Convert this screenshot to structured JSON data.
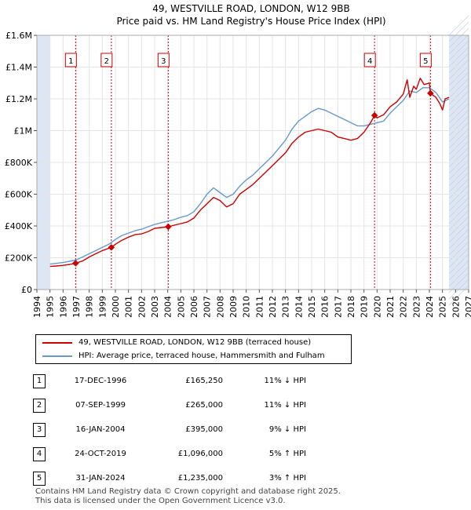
{
  "chart_data": {
    "type": "line",
    "title": "49, WESTVILLE ROAD, LONDON, W12 9BB",
    "subtitle": "Price paid vs. HM Land Registry's House Price Index (HPI)",
    "xlim": [
      1994,
      2027
    ],
    "ylim": [
      0,
      1600000
    ],
    "x_ticks": [
      "1994",
      "1995",
      "1996",
      "1997",
      "1998",
      "1999",
      "2000",
      "2001",
      "2002",
      "2003",
      "2004",
      "2005",
      "2006",
      "2007",
      "2008",
      "2009",
      "2010",
      "2011",
      "2012",
      "2013",
      "2014",
      "2015",
      "2016",
      "2017",
      "2018",
      "2019",
      "2020",
      "2021",
      "2022",
      "2023",
      "2024",
      "2025",
      "2026",
      "2027"
    ],
    "y_ticks": [
      {
        "value": 0,
        "label": "£0"
      },
      {
        "value": 200000,
        "label": "£200K"
      },
      {
        "value": 400000,
        "label": "£400K"
      },
      {
        "value": 600000,
        "label": "£600K"
      },
      {
        "value": 800000,
        "label": "£800K"
      },
      {
        "value": 1000000,
        "label": "£1M"
      },
      {
        "value": 1200000,
        "label": "£1.2M"
      },
      {
        "value": 1400000,
        "label": "£1.4M"
      },
      {
        "value": 1600000,
        "label": "£1.6M"
      }
    ],
    "data_start": 1995.0,
    "data_end": 2025.5,
    "series": [
      {
        "name": "49, WESTVILLE ROAD, LONDON, W12 9BB (terraced house)",
        "color": "#cc0000",
        "x": [
          1995.0,
          1995.5,
          1996.0,
          1996.5,
          1996.96,
          1997.5,
          1998.0,
          1998.5,
          1999.0,
          1999.69,
          2000.0,
          2000.5,
          2001.0,
          2001.5,
          2002.0,
          2002.5,
          2003.0,
          2003.5,
          2004.04,
          2004.5,
          2005.0,
          2005.5,
          2006.0,
          2006.5,
          2007.0,
          2007.5,
          2008.0,
          2008.5,
          2009.0,
          2009.5,
          2010.0,
          2010.5,
          2011.0,
          2011.5,
          2012.0,
          2012.5,
          2013.0,
          2013.5,
          2014.0,
          2014.5,
          2015.0,
          2015.5,
          2016.0,
          2016.5,
          2017.0,
          2017.5,
          2018.0,
          2018.5,
          2019.0,
          2019.5,
          2019.81,
          2020.0,
          2020.5,
          2021.0,
          2021.5,
          2022.0,
          2022.3,
          2022.5,
          2022.8,
          2023.0,
          2023.3,
          2023.6,
          2024.0,
          2024.08,
          2024.5,
          2024.8,
          2025.0,
          2025.2,
          2025.5
        ],
        "values": [
          145000,
          148000,
          152000,
          158000,
          165250,
          180000,
          205000,
          225000,
          245000,
          265000,
          285000,
          310000,
          330000,
          345000,
          350000,
          365000,
          385000,
          390000,
          395000,
          405000,
          415000,
          425000,
          450000,
          500000,
          540000,
          580000,
          560000,
          520000,
          540000,
          600000,
          630000,
          660000,
          700000,
          740000,
          780000,
          820000,
          860000,
          920000,
          960000,
          990000,
          1000000,
          1010000,
          1000000,
          990000,
          960000,
          950000,
          940000,
          950000,
          990000,
          1050000,
          1096000,
          1080000,
          1100000,
          1150000,
          1180000,
          1230000,
          1320000,
          1210000,
          1280000,
          1260000,
          1330000,
          1290000,
          1300000,
          1235000,
          1210000,
          1170000,
          1130000,
          1200000,
          1210000
        ]
      },
      {
        "name": "HPI: Average price, terraced house, Hammersmith and Fulham",
        "color": "#6699cc",
        "x": [
          1995.0,
          1995.5,
          1996.0,
          1996.5,
          1997.0,
          1997.5,
          1998.0,
          1998.5,
          1999.0,
          1999.5,
          2000.0,
          2000.5,
          2001.0,
          2001.5,
          2002.0,
          2002.5,
          2003.0,
          2003.5,
          2004.0,
          2004.5,
          2005.0,
          2005.5,
          2006.0,
          2006.5,
          2007.0,
          2007.5,
          2008.0,
          2008.5,
          2009.0,
          2009.5,
          2010.0,
          2010.5,
          2011.0,
          2011.5,
          2012.0,
          2012.5,
          2013.0,
          2013.5,
          2014.0,
          2014.5,
          2015.0,
          2015.5,
          2016.0,
          2016.5,
          2017.0,
          2017.5,
          2018.0,
          2018.5,
          2019.0,
          2019.5,
          2020.0,
          2020.5,
          2021.0,
          2021.5,
          2022.0,
          2022.5,
          2023.0,
          2023.5,
          2024.0,
          2024.5,
          2025.0,
          2025.5
        ],
        "values": [
          160000,
          165000,
          170000,
          178000,
          186000,
          205000,
          225000,
          245000,
          265000,
          285000,
          315000,
          340000,
          355000,
          370000,
          380000,
          395000,
          410000,
          420000,
          430000,
          440000,
          455000,
          465000,
          490000,
          540000,
          600000,
          640000,
          610000,
          580000,
          600000,
          650000,
          690000,
          720000,
          760000,
          800000,
          840000,
          890000,
          940000,
          1010000,
          1060000,
          1090000,
          1120000,
          1140000,
          1130000,
          1110000,
          1090000,
          1070000,
          1050000,
          1030000,
          1030000,
          1040000,
          1050000,
          1060000,
          1110000,
          1150000,
          1190000,
          1250000,
          1240000,
          1270000,
          1270000,
          1240000,
          1180000,
          1200000
        ]
      }
    ],
    "transactions": [
      {
        "id": "1",
        "x": 1996.96,
        "value": 165250
      },
      {
        "id": "2",
        "x": 1999.69,
        "value": 265000
      },
      {
        "id": "3",
        "x": 2004.04,
        "value": 395000
      },
      {
        "id": "4",
        "x": 2019.81,
        "value": 1096000
      },
      {
        "id": "5",
        "x": 2024.08,
        "value": 1235000
      }
    ]
  },
  "legend": {
    "property_label": "49, WESTVILLE ROAD, LONDON, W12 9BB (terraced house)",
    "hpi_label": "HPI: Average price, terraced house, Hammersmith and Fulham"
  },
  "table": [
    {
      "num": "1",
      "date": "17-DEC-1996",
      "price": "£165,250",
      "hpi": "11% ↓ HPI"
    },
    {
      "num": "2",
      "date": "07-SEP-1999",
      "price": "£265,000",
      "hpi": "11% ↓ HPI"
    },
    {
      "num": "3",
      "date": "16-JAN-2004",
      "price": "£395,000",
      "hpi": "9% ↓ HPI"
    },
    {
      "num": "4",
      "date": "24-OCT-2019",
      "price": "£1,096,000",
      "hpi": "5% ↑ HPI"
    },
    {
      "num": "5",
      "date": "31-JAN-2024",
      "price": "£1,235,000",
      "hpi": "3% ↑ HPI"
    }
  ],
  "footer": {
    "line1": "Contains HM Land Registry data © Crown copyright and database right 2025.",
    "line2": "This data is licensed under the Open Government Licence v3.0."
  },
  "colors": {
    "property": "#cc0000",
    "hpi": "#6699cc",
    "shade": "#dde6f4",
    "marker_line": "#cc0000"
  }
}
